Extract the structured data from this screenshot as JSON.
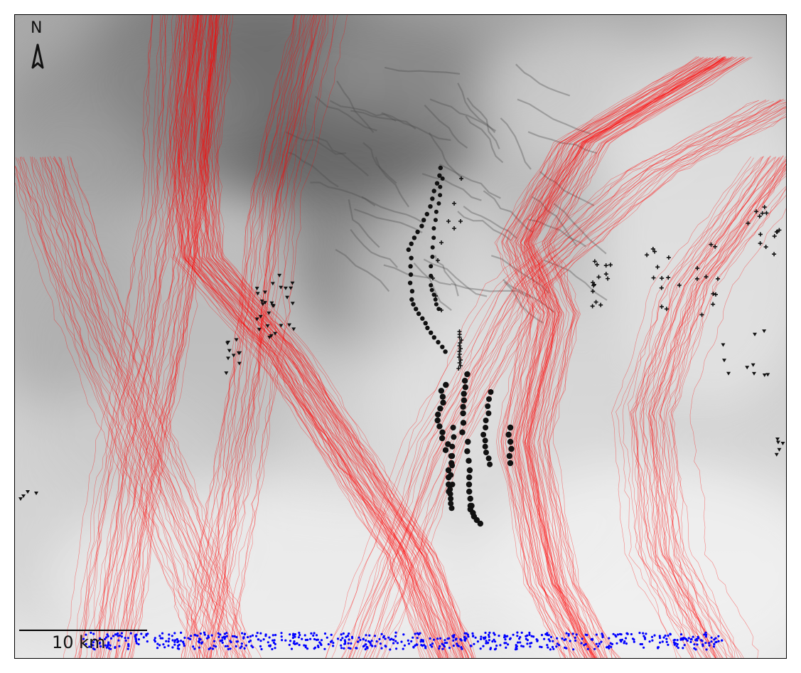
{
  "map": {
    "north_label": "N",
    "scale_label": "10 km",
    "colors": {
      "paths": "#ff0000",
      "endpoints": "#0000ff",
      "markers": "#111111",
      "frame": "#000000"
    },
    "icons": {
      "north": "north-arrow-icon"
    }
  }
}
